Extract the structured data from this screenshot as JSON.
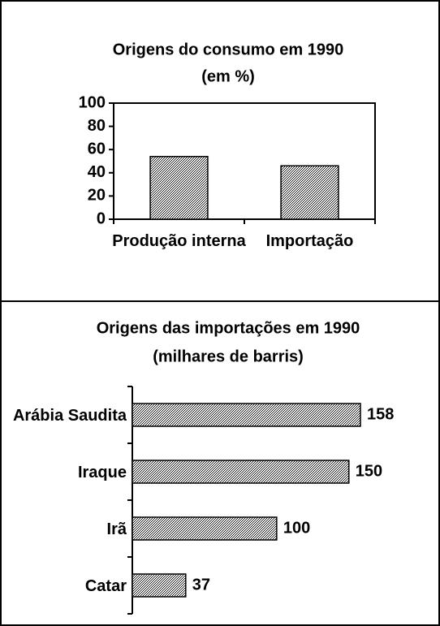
{
  "chart_data": [
    {
      "type": "bar",
      "title": "Origens do consumo em 1990",
      "subtitle": "(em %)",
      "categories": [
        "Produção interna",
        "Importação"
      ],
      "values": [
        54,
        46
      ],
      "color": "#9a9a9a",
      "ylim": [
        0,
        100
      ],
      "yticks": [
        0,
        20,
        40,
        60,
        80,
        100
      ]
    },
    {
      "type": "hbar",
      "title": "Origens das importações em 1990",
      "subtitle": "(milhares de barris)",
      "categories": [
        "Arábia Saudita",
        "Iraque",
        "Irã",
        "Catar"
      ],
      "values": [
        158,
        150,
        100,
        37
      ],
      "color": "#9a9a9a"
    }
  ]
}
